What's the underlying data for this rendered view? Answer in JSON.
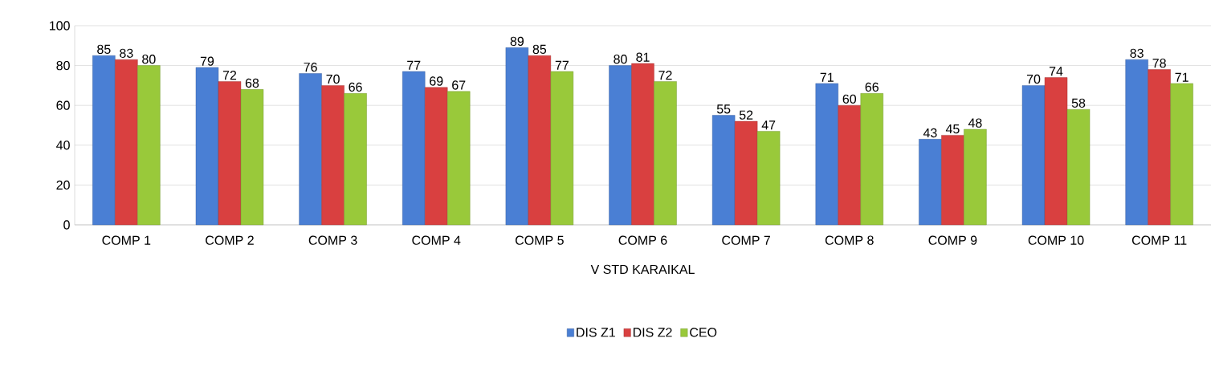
{
  "chart_data": {
    "type": "bar",
    "xlabel": "V STD  KARAIKAL",
    "categories": [
      "COMP 1",
      "COMP 2",
      "COMP 3",
      "COMP 4",
      "COMP 5",
      "COMP 6",
      "COMP 7",
      "COMP 8",
      "COMP 9",
      "COMP 10",
      "COMP 11"
    ],
    "series": [
      {
        "name": "DIS Z1",
        "color": "#4a7fd4",
        "values": [
          85,
          79,
          76,
          77,
          89,
          80,
          55,
          71,
          43,
          70,
          83
        ]
      },
      {
        "name": "DIS Z2",
        "color": "#d94040",
        "values": [
          83,
          72,
          70,
          69,
          85,
          81,
          52,
          60,
          45,
          74,
          78
        ]
      },
      {
        "name": "CEO",
        "color": "#99c93a",
        "values": [
          80,
          68,
          66,
          67,
          77,
          72,
          47,
          66,
          48,
          58,
          71
        ]
      }
    ],
    "ylim": [
      0,
      100
    ],
    "yticks": [
      0,
      20,
      40,
      60,
      80,
      100
    ],
    "grid": "y",
    "legend": "bottom",
    "data_labels": true
  }
}
